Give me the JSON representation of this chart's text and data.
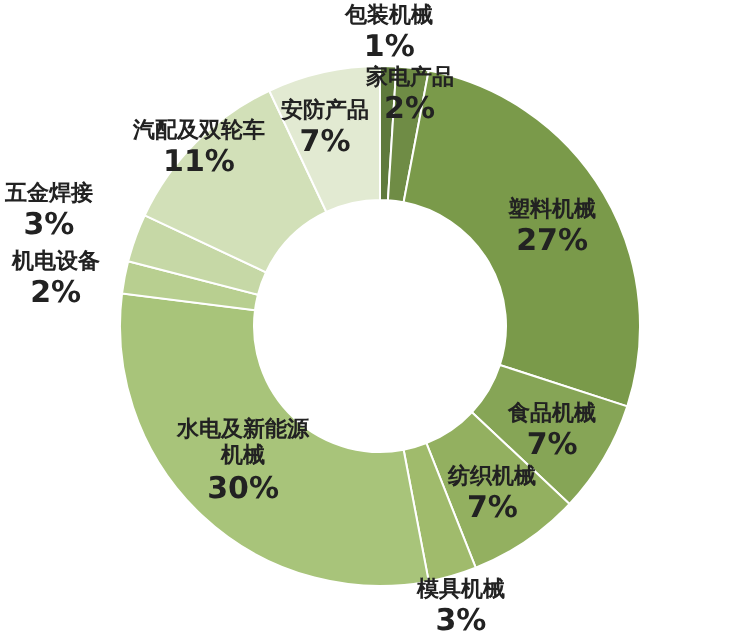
{
  "chart_data": {
    "type": "donut",
    "categories": [
      "包装机械",
      "家电产品",
      "塑料机械",
      "食品机械",
      "纺织机械",
      "模具机械",
      "水电及新能源机械",
      "机电设备",
      "五金焊接",
      "汽配及双轮车",
      "安防产品"
    ],
    "values": [
      1,
      2,
      27,
      7,
      7,
      3,
      30,
      2,
      3,
      11,
      7
    ],
    "value_labels": [
      "1%",
      "2%",
      "27%",
      "7%",
      "7%",
      "3%",
      "30%",
      "2%",
      "3%",
      "11%",
      "7%"
    ],
    "colors": [
      "#5f7a3c",
      "#6f8c45",
      "#7a9a4a",
      "#86a556",
      "#93b060",
      "#a0bb6c",
      "#a8c47a",
      "#b8cf90",
      "#c6d8a6",
      "#d2e0b8",
      "#e2ead2"
    ]
  }
}
